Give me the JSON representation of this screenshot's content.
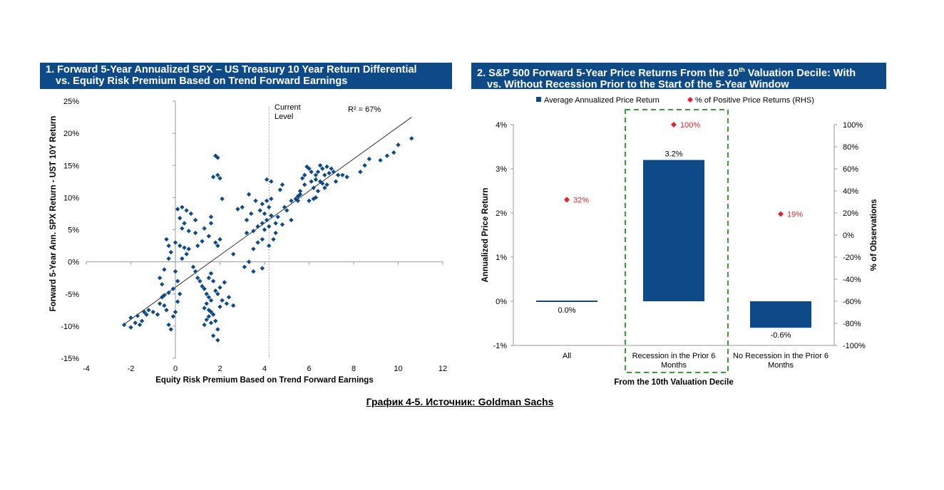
{
  "caption": "График 4-5. Источник: Goldman Sachs",
  "chart_data": [
    {
      "type": "scatter",
      "title_line1": "1. Forward 5-Year Annualized SPX – US Treasury 10 Year Return Differential",
      "title_line2": "vs. Equity Risk Premium Based on Trend Forward Earnings",
      "xlabel": "Equity Risk Premium Based on Trend Forward Earnings",
      "ylabel": "Forward 5-Year Ann. SPX Return - UST 10Y Return",
      "xlim": [
        -4,
        12
      ],
      "ylim": [
        -15,
        25
      ],
      "x_ticks": [
        "-4",
        "-2",
        "0",
        "2",
        "4",
        "6",
        "8",
        "10",
        "12"
      ],
      "y_ticks": [
        "25%",
        "20%",
        "15%",
        "10%",
        "5%",
        "0%",
        "-5%",
        "-10%",
        "-15%"
      ],
      "annotation_current_level": "Current\nLevel",
      "current_level_x": 4.2,
      "r_squared_label": "R² = 67%",
      "trendline": {
        "x": [
          -2.3,
          10.6
        ],
        "y": [
          -9.7,
          22.5
        ]
      },
      "marker_color": "#0e4a87",
      "points": [
        [
          -2.3,
          -9.8
        ],
        [
          -2.0,
          -10.2
        ],
        [
          -2.0,
          -8.7
        ],
        [
          -1.8,
          -9.5
        ],
        [
          -1.7,
          -8.4
        ],
        [
          -1.6,
          -9.8
        ],
        [
          -1.5,
          -9.2
        ],
        [
          -1.4,
          -7.8
        ],
        [
          -1.3,
          -8.2
        ],
        [
          -1.2,
          -7.5
        ],
        [
          -1.0,
          -7.8
        ],
        [
          -0.8,
          -8.2
        ],
        [
          -0.7,
          -6.5
        ],
        [
          -0.6,
          -5.5
        ],
        [
          -0.5,
          -6.8
        ],
        [
          -0.4,
          -7.5
        ],
        [
          -0.3,
          -9.8
        ],
        [
          -0.2,
          -10.5
        ],
        [
          -0.1,
          -8.5
        ],
        [
          0.0,
          -7.8
        ],
        [
          0.1,
          -6.2
        ],
        [
          0.2,
          -5.0
        ],
        [
          -0.3,
          -4.8
        ],
        [
          -0.5,
          -5.2
        ],
        [
          -0.6,
          -3.5
        ],
        [
          -0.7,
          -2.5
        ],
        [
          -0.5,
          -1.2
        ],
        [
          -0.3,
          0.5
        ],
        [
          -0.2,
          1.5
        ],
        [
          -0.3,
          2.5
        ],
        [
          -0.4,
          3.5
        ],
        [
          0.0,
          3.0
        ],
        [
          0.2,
          2.5
        ],
        [
          0.4,
          2.2
        ],
        [
          0.6,
          2.0
        ],
        [
          0.5,
          1.2
        ],
        [
          0.3,
          0.5
        ],
        [
          0.0,
          -1.5
        ],
        [
          0.1,
          -3.0
        ],
        [
          -0.1,
          -4.2
        ],
        [
          0.1,
          8.2
        ],
        [
          0.3,
          8.5
        ],
        [
          0.5,
          8.0
        ],
        [
          0.7,
          7.5
        ],
        [
          0.9,
          6.5
        ],
        [
          0.3,
          5.2
        ],
        [
          0.6,
          4.8
        ],
        [
          0.9,
          4.5
        ],
        [
          1.0,
          2.5
        ],
        [
          1.2,
          3.2
        ],
        [
          1.3,
          5.2
        ],
        [
          1.6,
          6.0
        ],
        [
          1.5,
          4.0
        ],
        [
          0.4,
          6.0
        ],
        [
          0.2,
          6.8
        ],
        [
          0.8,
          -0.8
        ],
        [
          0.9,
          -1.5
        ],
        [
          1.0,
          -2.5
        ],
        [
          1.1,
          -3.0
        ],
        [
          1.2,
          -3.8
        ],
        [
          1.3,
          -4.2
        ],
        [
          1.4,
          -5.0
        ],
        [
          1.5,
          -5.5
        ],
        [
          1.6,
          -6.0
        ],
        [
          1.4,
          -6.5
        ],
        [
          1.3,
          -7.2
        ],
        [
          1.5,
          -7.5
        ],
        [
          1.6,
          -7.8
        ],
        [
          1.7,
          -8.2
        ],
        [
          1.5,
          -8.5
        ],
        [
          1.4,
          -9.0
        ],
        [
          1.3,
          -9.8
        ],
        [
          1.6,
          -9.5
        ],
        [
          1.8,
          -9.2
        ],
        [
          1.9,
          -10.5
        ],
        [
          1.7,
          -11.5
        ],
        [
          1.9,
          -12.2
        ],
        [
          2.0,
          -7.0
        ],
        [
          2.1,
          -6.0
        ],
        [
          1.9,
          -5.0
        ],
        [
          1.8,
          -4.5
        ],
        [
          2.0,
          -4.0
        ],
        [
          2.2,
          -3.2
        ],
        [
          1.7,
          -3.0
        ],
        [
          1.5,
          -2.5
        ],
        [
          1.6,
          -1.8
        ],
        [
          2.3,
          -6.5
        ],
        [
          2.6,
          -6.8
        ],
        [
          2.4,
          -5.5
        ],
        [
          1.8,
          3.0
        ],
        [
          1.9,
          2.5
        ],
        [
          2.0,
          3.5
        ],
        [
          1.9,
          13.5
        ],
        [
          2.0,
          13.0
        ],
        [
          1.8,
          16.5
        ],
        [
          1.9,
          16.2
        ],
        [
          1.7,
          13.2
        ],
        [
          2.1,
          9.8
        ],
        [
          1.6,
          7.0
        ],
        [
          2.6,
          1.2
        ],
        [
          2.8,
          8.2
        ],
        [
          3.0,
          8.5
        ],
        [
          3.2,
          6.5
        ],
        [
          3.4,
          7.5
        ],
        [
          3.2,
          4.5
        ],
        [
          3.5,
          4.8
        ],
        [
          3.7,
          5.5
        ],
        [
          3.9,
          6.0
        ],
        [
          4.0,
          7.5
        ],
        [
          3.8,
          8.0
        ],
        [
          3.6,
          9.5
        ],
        [
          3.3,
          10.5
        ],
        [
          3.9,
          9.0
        ],
        [
          4.1,
          9.5
        ],
        [
          4.2,
          8.5
        ],
        [
          4.3,
          7.2
        ],
        [
          4.1,
          6.5
        ],
        [
          4.0,
          5.0
        ],
        [
          3.7,
          3.0
        ],
        [
          3.5,
          2.0
        ],
        [
          3.3,
          0.0
        ],
        [
          3.1,
          -0.8
        ],
        [
          3.5,
          -1.5
        ],
        [
          3.9,
          -1.0
        ],
        [
          4.2,
          2.5
        ],
        [
          4.4,
          3.5
        ],
        [
          4.5,
          6.0
        ],
        [
          4.6,
          7.0
        ],
        [
          4.3,
          9.8
        ],
        [
          4.1,
          12.8
        ],
        [
          4.3,
          12.5
        ],
        [
          4.7,
          11.2
        ],
        [
          4.8,
          12.0
        ],
        [
          4.9,
          8.5
        ],
        [
          5.0,
          8.0
        ],
        [
          5.2,
          9.5
        ],
        [
          5.4,
          9.8
        ],
        [
          5.5,
          10.2
        ],
        [
          5.6,
          11.0
        ],
        [
          5.7,
          13.0
        ],
        [
          5.8,
          13.5
        ],
        [
          5.9,
          14.8
        ],
        [
          6.0,
          14.5
        ],
        [
          5.8,
          12.0
        ],
        [
          5.6,
          10.5
        ],
        [
          5.5,
          9.5
        ],
        [
          6.1,
          12.5
        ],
        [
          6.2,
          11.5
        ],
        [
          6.3,
          13.5
        ],
        [
          6.4,
          14.0
        ],
        [
          6.5,
          15.0
        ],
        [
          6.6,
          14.5
        ],
        [
          6.7,
          13.5
        ],
        [
          6.5,
          12.5
        ],
        [
          6.4,
          11.0
        ],
        [
          6.3,
          10.0
        ],
        [
          6.2,
          9.8
        ],
        [
          6.0,
          9.5
        ],
        [
          6.8,
          12.0
        ],
        [
          6.9,
          13.8
        ],
        [
          7.0,
          14.5
        ],
        [
          7.1,
          14.0
        ],
        [
          7.2,
          12.5
        ],
        [
          6.7,
          11.5
        ],
        [
          6.6,
          12.2
        ],
        [
          7.5,
          13.5
        ],
        [
          7.7,
          13.2
        ],
        [
          8.3,
          14.0
        ],
        [
          8.5,
          15.0
        ],
        [
          8.7,
          16.0
        ],
        [
          9.2,
          15.8
        ],
        [
          9.8,
          17.0
        ],
        [
          10.6,
          19.2
        ],
        [
          9.5,
          16.5
        ],
        [
          10.0,
          18.2
        ],
        [
          4.8,
          5.8
        ],
        [
          5.2,
          6.5
        ],
        [
          4.5,
          4.5
        ],
        [
          4.2,
          5.5
        ],
        [
          3.9,
          3.5
        ],
        [
          6.8,
          14.8
        ],
        [
          7.3,
          13.5
        ],
        [
          6.1,
          14.0
        ],
        [
          6.3,
          12.8
        ]
      ]
    },
    {
      "type": "bar",
      "title_line1": "2. S&P 500 Forward 5-Year Price Returns From the 10th Valuation Decile: With",
      "title_line2": "vs. Without Recession Prior to the Start of the 5-Year Window",
      "legend_bar": "Average Annualized Price Return",
      "legend_marker": "% of Positive Price Returns (RHS)",
      "legend_position": "top",
      "categories": [
        "All",
        "Recession in the Prior 6\nMonths",
        "No Recession in the Prior 6\nMonths"
      ],
      "series": [
        {
          "name": "Average Annualized Price Return",
          "values": [
            0.0,
            3.2,
            -0.6
          ],
          "labels": [
            "0.0%",
            "3.2%",
            "-0.6%"
          ],
          "color": "#0e4a87",
          "axis": "left"
        },
        {
          "name": "% of Positive Price Returns (RHS)",
          "values": [
            32,
            100,
            19
          ],
          "labels": [
            "32%",
            "100%",
            "19%"
          ],
          "color": "#e8202a",
          "axis": "right"
        }
      ],
      "xlabel": "From the 10th Valuation Decile",
      "ylabel": "Annualized Price Return",
      "ylabel_right": "% of Observations",
      "ylim": [
        -1,
        4
      ],
      "ylim_right": [
        -100,
        100
      ],
      "y_ticks": [
        "4%",
        "3%",
        "2%",
        "1%",
        "0%",
        "-1%"
      ],
      "y_ticks_right": [
        "100%",
        "80%",
        "60%",
        "40%",
        "20%",
        "0%",
        "-20%",
        "-40%",
        "-60%",
        "-80%",
        "-100%"
      ],
      "highlight_box_color": "#3a9a3a"
    }
  ]
}
